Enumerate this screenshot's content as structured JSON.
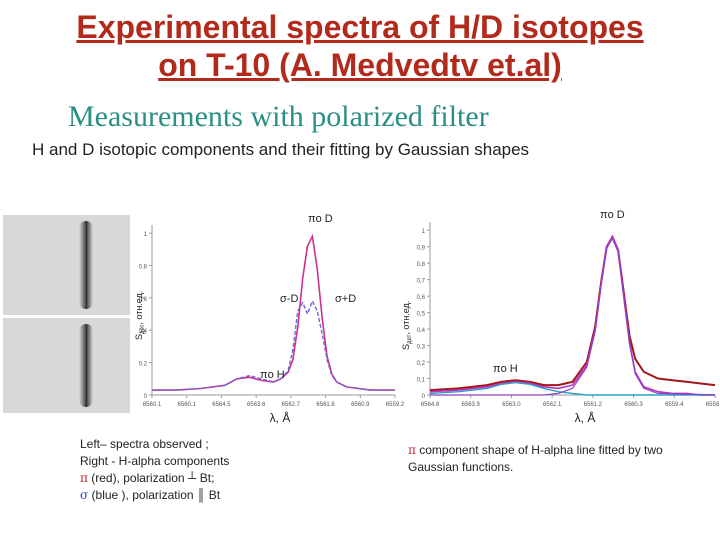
{
  "slide": {
    "title_line1": "Experimental spectra of H/D isotopes",
    "title_line2": "on T-10 (A. Medvedtv et.al)",
    "subtitle": "Measurements with polarized filter",
    "description": "H and D isotopic components and their fitting by Gaussian shapes"
  },
  "caption_left": {
    "line1": "Left– spectra observed ;",
    "line2": "Right - H-alpha components",
    "line3_symbol": "π",
    "line3_text": " (red), polarization ┴ Bt;",
    "line4_symbol": "σ",
    "line4_text": " (blue ), polarization ║ Bt"
  },
  "caption_right": {
    "symbol": "π",
    "text": " component shape of H-alpha line fitted by two Gaussian functions."
  },
  "chart_data": [
    {
      "type": "line",
      "ylabel": "S",
      "ylabel_sub": "дет",
      "ylabel_rest": ", отн.ед.",
      "xlabel": "λ, Å",
      "x_ticks": [
        "6560.1",
        "6560.1",
        "6564.5",
        "6563.6",
        "6562.7",
        "6561.8",
        "6560.9",
        "6559.2"
      ],
      "y_ticks": [
        "0",
        "0.2",
        "0.4",
        "0.6",
        "0.8",
        "1"
      ],
      "ylim": [
        0,
        1.05
      ],
      "annotations": [
        "πo D",
        "σ-D",
        "σ+D",
        "πo H"
      ],
      "colors": {
        "pi": "#d0308a",
        "sigma": "#6a6ad8"
      },
      "series": [
        {
          "name": "π",
          "x": [
            0,
            0.1,
            0.2,
            0.3,
            0.35,
            0.4,
            0.45,
            0.5,
            0.53,
            0.56,
            0.58,
            0.6,
            0.62,
            0.64,
            0.66,
            0.68,
            0.7,
            0.72,
            0.74,
            0.76,
            0.8,
            0.85,
            0.9,
            1.0
          ],
          "values": [
            0.03,
            0.03,
            0.04,
            0.06,
            0.1,
            0.11,
            0.09,
            0.08,
            0.1,
            0.14,
            0.22,
            0.42,
            0.72,
            0.92,
            0.98,
            0.78,
            0.48,
            0.24,
            0.13,
            0.08,
            0.05,
            0.04,
            0.03,
            0.03
          ]
        },
        {
          "name": "σ",
          "x": [
            0,
            0.1,
            0.2,
            0.3,
            0.35,
            0.4,
            0.45,
            0.5,
            0.53,
            0.56,
            0.58,
            0.6,
            0.62,
            0.64,
            0.66,
            0.68,
            0.7,
            0.72,
            0.74,
            0.76,
            0.8,
            0.85,
            0.9,
            1.0
          ],
          "values": [
            0.03,
            0.03,
            0.04,
            0.06,
            0.1,
            0.12,
            0.1,
            0.08,
            0.1,
            0.15,
            0.28,
            0.52,
            0.57,
            0.5,
            0.58,
            0.52,
            0.38,
            0.22,
            0.12,
            0.08,
            0.05,
            0.04,
            0.03,
            0.03
          ]
        }
      ]
    },
    {
      "type": "line",
      "ylabel": "S",
      "ylabel_sub": "дет",
      "ylabel_rest": ", отн.ед.",
      "xlabel": "λ, Å",
      "x_ticks": [
        "6564.8",
        "6563.9",
        "6563.0",
        "6562.1",
        "6561.2",
        "6560.3",
        "6559.4",
        "6558.5"
      ],
      "y_ticks": [
        "0",
        "0,1",
        "0,2",
        "0,3",
        "0,4",
        "0,5",
        "0,6",
        "0,7",
        "0,8",
        "0,9",
        "1"
      ],
      "ylim": [
        0,
        1.05
      ],
      "annotations": [
        "πo D",
        "πo H"
      ],
      "colors": {
        "observed": "#a01818",
        "fit_total": "#c030c0",
        "fit_H": "#2aa0c8",
        "fit_D": "#8a40c8"
      },
      "series": [
        {
          "x": [
            0,
            0.1,
            0.2,
            0.25,
            0.3,
            0.35,
            0.4,
            0.45,
            0.5,
            0.55,
            0.58,
            0.6,
            0.62,
            0.64,
            0.66,
            0.68,
            0.7,
            0.72,
            0.75,
            0.8,
            0.85,
            0.9,
            0.95,
            1.0
          ],
          "values": [
            0.03,
            0.04,
            0.06,
            0.08,
            0.09,
            0.08,
            0.06,
            0.06,
            0.08,
            0.2,
            0.42,
            0.68,
            0.9,
            0.96,
            0.88,
            0.62,
            0.36,
            0.22,
            0.14,
            0.1,
            0.09,
            0.08,
            0.07,
            0.06
          ]
        },
        {
          "x": [
            0,
            0.1,
            0.2,
            0.25,
            0.3,
            0.35,
            0.4,
            0.45,
            0.5,
            0.55,
            0.58,
            0.6,
            0.62,
            0.64,
            0.66,
            0.68,
            0.7,
            0.72,
            0.75,
            0.8,
            0.85,
            0.9,
            0.95,
            1.0
          ],
          "values": [
            0.02,
            0.03,
            0.05,
            0.07,
            0.08,
            0.07,
            0.05,
            0.04,
            0.06,
            0.18,
            0.4,
            0.67,
            0.9,
            0.96,
            0.88,
            0.6,
            0.32,
            0.14,
            0.05,
            0.02,
            0.01,
            0.01,
            0.0,
            0.0
          ]
        },
        {
          "x": [
            0,
            0.1,
            0.2,
            0.25,
            0.3,
            0.35,
            0.4,
            0.45,
            0.5,
            0.55,
            0.6,
            0.7,
            0.8,
            0.9,
            1.0
          ],
          "values": [
            0.01,
            0.02,
            0.04,
            0.065,
            0.075,
            0.065,
            0.04,
            0.02,
            0.01,
            0.0,
            0.0,
            0.0,
            0.0,
            0.0,
            0.0
          ]
        },
        {
          "x": [
            0,
            0.4,
            0.45,
            0.5,
            0.55,
            0.58,
            0.6,
            0.62,
            0.64,
            0.66,
            0.68,
            0.7,
            0.72,
            0.75,
            0.8,
            1.0
          ],
          "values": [
            0.0,
            0.0,
            0.01,
            0.04,
            0.17,
            0.39,
            0.66,
            0.89,
            0.95,
            0.87,
            0.59,
            0.31,
            0.13,
            0.04,
            0.01,
            0.0
          ]
        }
      ]
    }
  ]
}
